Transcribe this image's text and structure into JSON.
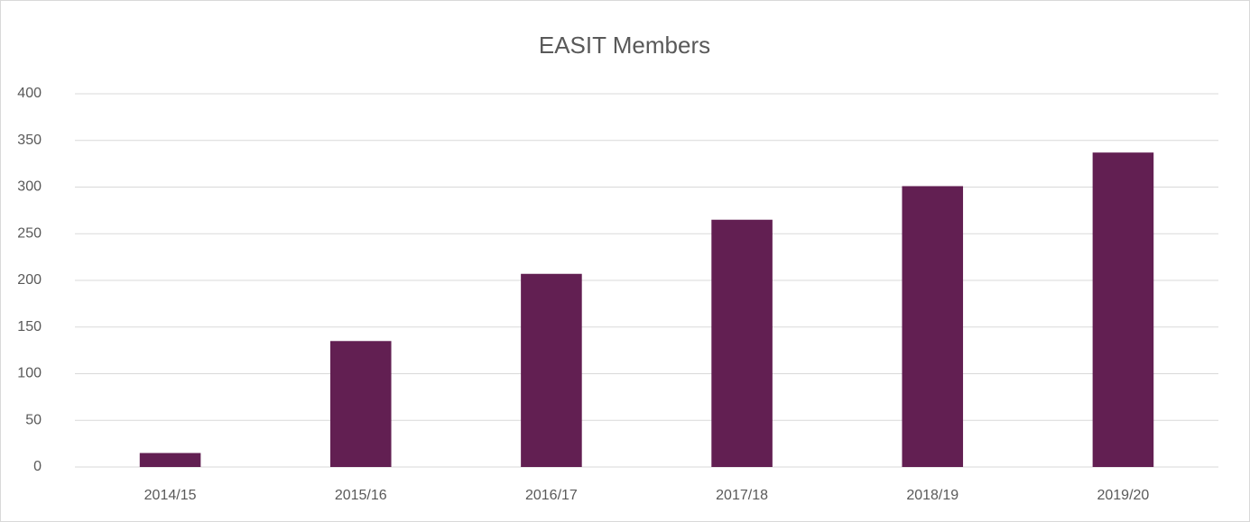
{
  "chart_data": {
    "type": "bar",
    "title": "EASIT Members",
    "categories": [
      "2014/15",
      "2015/16",
      "2016/17",
      "2017/18",
      "2018/19",
      "2019/20"
    ],
    "values": [
      15,
      135,
      207,
      265,
      301,
      337
    ],
    "color": "#621f52",
    "ylim": [
      0,
      400
    ],
    "yticks": [
      0,
      50,
      100,
      150,
      200,
      250,
      300,
      350,
      400
    ],
    "grid": true
  }
}
